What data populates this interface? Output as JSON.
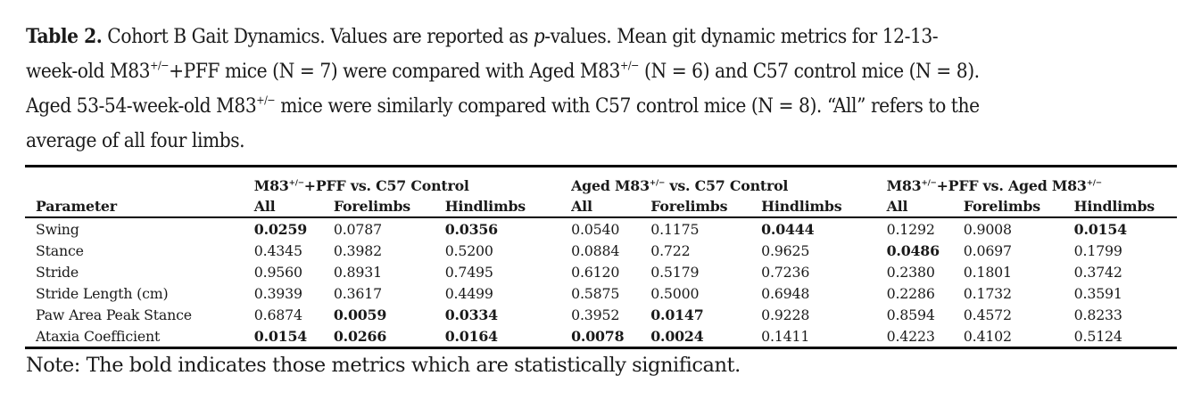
{
  "caption": {
    "label": "Table 2.",
    "line1_a": " Cohort B Gait Dynamics. Values are reported as ",
    "line1_italic": "p",
    "line1_b": "-values. Mean git dynamic metrics for 12-13-",
    "line2_a": "week-old M83",
    "line2_sup1": "+/−",
    "line2_b": "+PFF mice (N = 7) were compared with Aged M83",
    "line2_sup2": "+/−",
    "line2_c": " (N = 6) and C57 control mice (N = 8).",
    "line3_a": "Aged 53-54-week-old M83",
    "line3_sup": "+/−",
    "line3_b": " mice were similarly compared with C57 control mice (N = 8). “All” refers to the",
    "line4": "average of all four limbs."
  },
  "table": {
    "groups": [
      {
        "pre": "M83",
        "sup": "+/−",
        "post": "+PFF vs. C57 Control",
        "sup2": ""
      },
      {
        "pre": "Aged M83",
        "sup": "+/−",
        "post": " vs. C57 Control",
        "sup2": ""
      },
      {
        "pre": "M83",
        "sup": "+/−",
        "post": "+PFF vs. Aged M83",
        "sup2": "+/−"
      }
    ],
    "columns": [
      "Parameter",
      "All",
      "Forelimbs",
      "Hindlimbs",
      "All",
      "Forelimbs",
      "Hindlimbs",
      "All",
      "Forelimbs",
      "Hindlimbs"
    ],
    "rows": [
      {
        "parameter": "Swing",
        "values": [
          "0.0259",
          "0.0787",
          "0.0356",
          "0.0540",
          "0.1175",
          "0.0444",
          "0.1292",
          "0.9008",
          "0.0154"
        ],
        "bold": [
          true,
          false,
          true,
          false,
          false,
          true,
          false,
          false,
          true
        ]
      },
      {
        "parameter": "Stance",
        "values": [
          "0.4345",
          "0.3982",
          "0.5200",
          "0.0884",
          "0.722",
          "0.9625",
          "0.0486",
          "0.0697",
          "0.1799"
        ],
        "bold": [
          false,
          false,
          false,
          false,
          false,
          false,
          true,
          false,
          false
        ]
      },
      {
        "parameter": "Stride",
        "values": [
          "0.9560",
          "0.8931",
          "0.7495",
          "0.6120",
          "0.5179",
          "0.7236",
          "0.2380",
          "0.1801",
          "0.3742"
        ],
        "bold": [
          false,
          false,
          false,
          false,
          false,
          false,
          false,
          false,
          false
        ]
      },
      {
        "parameter": "Stride Length (cm)",
        "values": [
          "0.3939",
          "0.3617",
          "0.4499",
          "0.5875",
          "0.5000",
          "0.6948",
          "0.2286",
          "0.1732",
          "0.3591"
        ],
        "bold": [
          false,
          false,
          false,
          false,
          false,
          false,
          false,
          false,
          false
        ]
      },
      {
        "parameter": "Paw Area Peak Stance",
        "values": [
          "0.6874",
          "0.0059",
          "0.0334",
          "0.3952",
          "0.0147",
          "0.9228",
          "0.8594",
          "0.4572",
          "0.8233"
        ],
        "bold": [
          false,
          true,
          true,
          false,
          true,
          false,
          false,
          false,
          false
        ]
      },
      {
        "parameter": "Ataxia Coefficient",
        "values": [
          "0.0154",
          "0.0266",
          "0.0164",
          "0.0078",
          "0.0024",
          "0.1411",
          "0.4223",
          "0.4102",
          "0.5124"
        ],
        "bold": [
          true,
          true,
          true,
          true,
          true,
          false,
          false,
          false,
          false
        ]
      }
    ]
  },
  "note": "Note: The bold indicates those metrics which are statistically significant."
}
